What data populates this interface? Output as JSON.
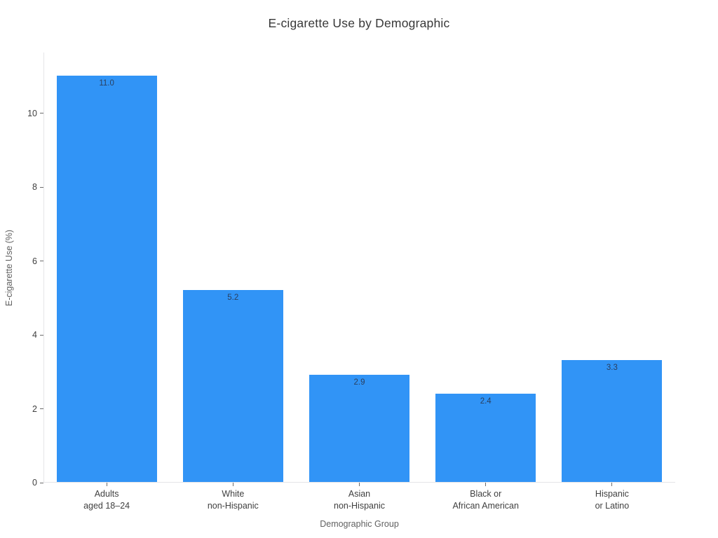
{
  "chart_data": {
    "type": "bar",
    "title": "E-cigarette Use by Demographic",
    "xlabel": "Demographic Group",
    "ylabel": "E-cigarette Use (%)",
    "categories": [
      [
        "Adults",
        "aged 18–24"
      ],
      [
        "White",
        "non-Hispanic"
      ],
      [
        "Asian",
        "non-Hispanic"
      ],
      [
        "Black or",
        "African American"
      ],
      [
        "Hispanic",
        "or Latino"
      ]
    ],
    "values": [
      11.0,
      5.2,
      2.9,
      2.4,
      3.3
    ],
    "value_labels": [
      "11.0",
      "5.2",
      "2.9",
      "2.4",
      "3.3"
    ],
    "yticks": [
      0,
      2,
      4,
      6,
      8,
      10
    ],
    "ylim": [
      0,
      11.65
    ],
    "grid": false,
    "legend": "none",
    "bar_color": "#3194F6",
    "value_label_color": "#2a3f5f",
    "axis_line_color": "#e5e5e8"
  }
}
